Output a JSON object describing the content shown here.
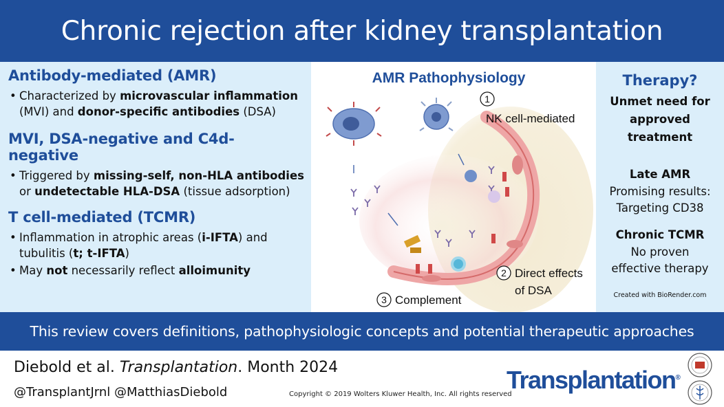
{
  "header": {
    "title": "Chronic rejection after kidney transplantation"
  },
  "left": {
    "amr_title": "Antibody-mediated (AMR)",
    "amr_b1": {
      "t1": "Characterized by ",
      "t2": "microvascular inflammation",
      "t3": " (MVI) and ",
      "t4": "donor-specific antibodies",
      "t5": " (DSA)"
    },
    "mvi_title": "MVI, DSA-negative and C4d-negative",
    "mvi_b1": {
      "t1": "Triggered by ",
      "t2": "missing-self, non-HLA antibodies",
      "t3": " or ",
      "t4": "undetectable HLA-DSA",
      "t5": " (tissue adsorption)"
    },
    "tcmr_title": "T cell-mediated (TCMR)",
    "tcmr_b1": {
      "t1": "Inflammation in atrophic areas (",
      "t2": "i-IFTA",
      "t3": ") and tubulitis (",
      "t4": "t; t-IFTA",
      "t5": ")"
    },
    "tcmr_b2": {
      "t1": "May ",
      "t2": "not",
      "t3": " necessarily reflect ",
      "t4": "alloimunity"
    }
  },
  "center": {
    "title": "AMR Pathophysiology",
    "label1_num": "1",
    "label1": "NK cell-mediated",
    "label2_num": "2",
    "label2_line1": "Direct effects",
    "label2_line2": "of DSA",
    "label3_num": "3",
    "label3": "Complement"
  },
  "right": {
    "title": "Therapy?",
    "unmet1": "Unmet need for",
    "unmet2": "approved",
    "unmet3": "treatment",
    "late_title": "Late AMR",
    "late1": "Promising results:",
    "late2": "Targeting CD38",
    "chronic_title": "Chronic TCMR",
    "chronic1": "No proven",
    "chronic2": "effective therapy",
    "created": "Created with BioRender.com"
  },
  "review": {
    "text": "This review covers definitions, pathophysiologic concepts and potential therapeutic approaches"
  },
  "footer": {
    "authors": "Diebold et al. ",
    "journal_ital": "Transplantation",
    "date": ". Month 2024",
    "handles": "@TransplantJrnl @MatthiasDiebold",
    "copyright": "Copyright © 2019  Wolters Kluwer Health, Inc. All rights reserved",
    "journal_logo": "Transplantation",
    "reg": "®"
  },
  "colors": {
    "navy": "#1f4e9a",
    "panel": "#dbeefa",
    "vessel": "#f2b3b3",
    "cell": "#6f8fc9"
  }
}
